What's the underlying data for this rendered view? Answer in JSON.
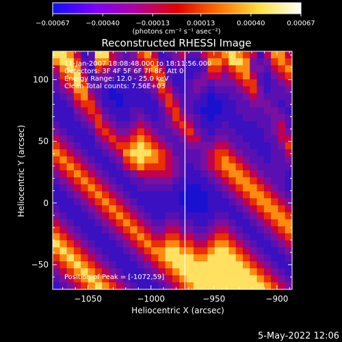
{
  "chart_data": {
    "type": "heatmap",
    "title": "Reconstructed RHESSI Image",
    "xlabel": "Heliocentric X (arcsec)",
    "ylabel": "Heliocentric Y (arcsec)",
    "xlim": [
      -1078,
      -888
    ],
    "ylim": [
      -70,
      123
    ],
    "xticks": [
      -1050,
      -1000,
      -950,
      -900
    ],
    "xtick_labels": [
      "−1050",
      "−1000",
      "−950",
      "−900"
    ],
    "yticks": [
      -50,
      0,
      50,
      100
    ],
    "ytick_labels": [
      "−50",
      "0",
      "50",
      "100"
    ],
    "colorbar": {
      "range": [
        -0.00067,
        0.00067
      ],
      "ticks": [
        -0.00067,
        -0.0004,
        -0.00013,
        0.00013,
        0.0004,
        0.00067
      ],
      "tick_labels": [
        "−0.00067",
        "−0.00040",
        "−0.00013",
        "0.00013",
        "0.00040",
        "0.00067"
      ],
      "units": "(photons cm⁻² s⁻¹ asec⁻²)",
      "colors": [
        "#1010ff",
        "#7a00ff",
        "#b000a0",
        "#e00000",
        "#ff7000",
        "#ffe040",
        "#ffffff"
      ]
    },
    "annotations": [
      "11-Jan-2007 18:08:48.000 to 18:11:56.000",
      "Detectors: 3F 4F 5F 6F 7F 8F, Att 0",
      "Energy Range: 12.0 - 25.0 keV",
      "Clean     Total counts: 7.56E+03"
    ],
    "peak_label": "Position of Peak = [-1072,59]",
    "vertical_line_x": -973,
    "grid": false,
    "legend": "none",
    "grid_size": [
      34,
      34
    ],
    "rows": [
      "HHGEBCHHEDCDFGEBCDECCEFFGHGFEBEGGE",
      "GHHFCCGGEDCDEFFCBDDBBDGGFHHGDCDFGF",
      "EGHGDBFEDCCDDFGEBCCBBCFFEFGGDDCEFG",
      "DFGHEBDDCBBCCEFFCBBBCDEEDEFGECBDEF",
      "CEFHFCCCBBBBCDEGDBBCDDCDDDEFFCBCDE",
      "CDEGGDCBABBBBCDFECBCDCBCCCDEFDBCCD",
      "BCDFGECBAABBBBCEFDCCCBABBCCDEDCCCC",
      "BBCEFFDBBABBBBBDFECCBBAABBCCDDDCBC",
      "BBBDEFECBBBCCBBCEFDCBAAABBCCCCDDCB",
      "BBBCDEFDCBBCDCBCDFEDCBABBBBCCCCDDC",
      "CBBBCDFEDCCDEDCCDEFECBBBCBBBBCCDEC",
      "DCBBBCEFEDDEFEDCCDEFDCBCCCBBBBCDED",
      "EDCBBBDEFEEFGFEDCCDEECCDDCCBBBCCEE",
      "FEDCBBCDEFFGHGFEDCCDDDDEEDCCBBBCDF",
      "GFEDCBBCDEGHHHGFECCCCDEFFEDCCBBCCE",
      "FGFEDCBBCDFGHGGFEDCCCDEFGFEDCCBCCD",
      "EFGFEDCBBCEFGFFFEDCBCDEFGGFEDCCCCC",
      "DEFGFEDCBBCDEEEEEDCBBCDEFGGFEDCCCB",
      "CDEFGFEDCBBCCDDDDCBBBBCDEFGGFEDCCB",
      "BCDEFGFEDCBBCCCCCBBAABBCDEFGGFEDCB",
      "BBCDEFGFEDCBBBBBBBAAAABBCDEFGGFEDC",
      "BBBCDEFGFEDCBBBBBBAAAABBBCDEFGGFED",
      "CBBBCDEFGFEDCBBBBBBAAABBBBCDEFGGFE",
      "DCBBBCDEFGFEDCBBCCBBBBBCCBBCDEFGGF",
      "EDCBBBCDEFGFEDCCDDCCBBCDDCBBCDEFGG",
      "FEDCBBBCDEFGFEDDEEDDCCDEEDCBBCDEFG",
      "GFEDCBBBCDEFGFEEFFEEDDEFFEDCBBCDEF",
      "HGFEDCBBBCDEFGFFGGFFEEFGGFEDCBBCDE",
      "GHGFEDCBBBCDEFGGHHGGFFGHHGFEDCBBCD",
      "FGHGFEDCBBBCDEFGHHHHGGHHHHGFEDCBBC",
      "EFGHGFEDCBBBCDEFGHHHHHHHHHHGFEDCBB",
      "DEFGHGFEDCBBBCDEFGHHHHHHHHHHGFEDCB",
      "CDEFGHGFEDCBBBCDEFGHHHHHHHHHHGFEDC",
      "BCDEFGHGFEDCBBBCDEFGHHHHHHHHHHGFED"
    ]
  },
  "footer": {
    "timestamp": "5-May-2022 12:06"
  }
}
